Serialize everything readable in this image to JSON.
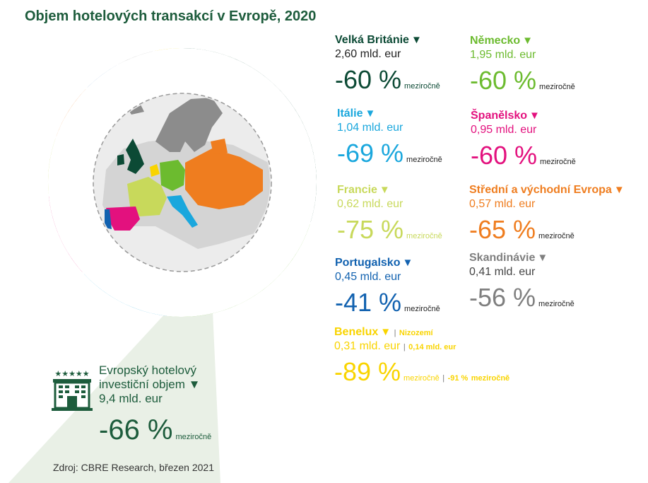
{
  "title": "Objem hotelových transakcí v Evropě, 2020",
  "colors": {
    "uk": "#0c4a35",
    "de": "#6cbb2f",
    "it": "#1aa7dd",
    "es": "#e3117e",
    "fr": "#c8d95b",
    "cee": "#ef7d1f",
    "pt": "#1262b0",
    "sc": "#7f7f7f",
    "bx": "#f9d400",
    "title": "#1d5c3c"
  },
  "chart_data": {
    "type": "pie",
    "variant": "donut",
    "unit": "mld. eur",
    "slices": [
      {
        "label": "2.6",
        "value": 2.6,
        "color": "#0c4a35"
      },
      {
        "label": "1.9",
        "value": 1.9,
        "color": "#6cbb2f"
      },
      {
        "label": "1.0",
        "value": 1.0,
        "color": "#1aa7dd"
      },
      {
        "label": "0.9",
        "value": 0.9,
        "color": "#e3117e"
      },
      {
        "label": "0.6",
        "value": 0.6,
        "color": "#c8d95b"
      },
      {
        "label": "0.6",
        "value": 0.6,
        "color": "#ef7d1f"
      },
      {
        "label": "0.4",
        "value": 0.4,
        "color": "#1262b0"
      },
      {
        "label": "0.4",
        "value": 0.4,
        "color": "#7f7f7f"
      },
      {
        "label": "0.3",
        "value": 0.3,
        "color": "#f9d400"
      }
    ]
  },
  "stats": {
    "uk": {
      "name": "Velká Británie",
      "arrow": "▼",
      "amount": "2,60 mld. eur",
      "pct": "-60 %",
      "yoy": "meziročně"
    },
    "de": {
      "name": "Německo",
      "arrow": "▼",
      "amount": "1,95 mld. eur",
      "pct": "-60 %",
      "yoy": "meziročně"
    },
    "it": {
      "name": "Itálie",
      "arrow": "▼",
      "amount": "1,04 mld. eur",
      "pct": "-69 %",
      "yoy": "meziročně"
    },
    "es": {
      "name": "Španělsko",
      "arrow": "▼",
      "amount": "0,95 mld. eur",
      "pct": "-60 %",
      "yoy": "meziročně"
    },
    "fr": {
      "name": "Francie",
      "arrow": "▼",
      "amount": "0,62 mld. eur",
      "pct": "-75 %",
      "yoy": "meziročně"
    },
    "cee": {
      "name": "Střední a východní Evropa",
      "arrow": "▼",
      "amount": "0,57 mld. eur",
      "pct": "-65 %",
      "yoy": "meziročně"
    },
    "pt": {
      "name": "Portugalsko",
      "arrow": "▼",
      "amount": "0,45 mld. eur",
      "pct": "-41 %",
      "yoy": "meziročně"
    },
    "sc": {
      "name": "Skandinávie",
      "arrow": "▼",
      "amount": "0,41 mld. eur",
      "pct": "-56 %",
      "yoy": "meziročně"
    },
    "bx": {
      "name": "Benelux",
      "arrow": "▼",
      "sep": "|",
      "sub_name": "Nizozemí",
      "amount": "0,31 mld. eur",
      "sub_amount": "0,14 mld. eur",
      "pct": "-89 %",
      "yoy": "meziročně",
      "sub_pct": "-91 %",
      "sub_yoy": "meziročně"
    }
  },
  "total": {
    "line1": "Evropský hotelový",
    "line2": "investiční objem",
    "arrow": "▼",
    "amount": "9,4 mld. eur",
    "pct": "-66 %",
    "yoy": "meziročně",
    "stars": "★★★★★"
  },
  "source": "Zdroj: CBRE Research, březen 2021"
}
